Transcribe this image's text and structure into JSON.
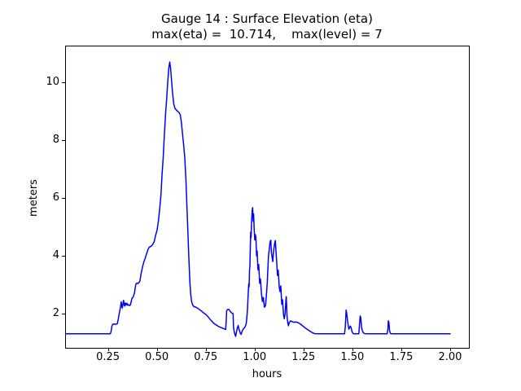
{
  "figure": {
    "title_line1": "Gauge 14 : Surface Elevation (eta)",
    "title_line2": "max(eta) =  10.714,    max(level) = 7"
  },
  "chart_data": {
    "type": "line",
    "title": "Gauge 14 : Surface Elevation (eta)",
    "subtitle": "max(eta) =  10.714,    max(level) = 7",
    "xlabel": "hours",
    "ylabel": "meters",
    "max_eta": 10.714,
    "max_level": 7,
    "xlim": [
      0.031,
      2.096
    ],
    "ylim": [
      0.815,
      11.28
    ],
    "xticks": [
      0.25,
      0.5,
      0.75,
      1.0,
      1.25,
      1.5,
      1.75,
      2.0
    ],
    "xtick_labels": [
      "0.25",
      "0.50",
      "0.75",
      "1.00",
      "1.25",
      "1.50",
      "1.75",
      "2.00"
    ],
    "yticks": [
      2,
      4,
      6,
      8,
      10
    ],
    "ytick_labels": [
      "2",
      "4",
      "6",
      "8",
      "10"
    ],
    "grid": false,
    "legend": null,
    "line_color": "#0000ff",
    "background_color": "#ffffff",
    "series": [
      {
        "name": "eta",
        "points": [
          [
            0.033,
            1.3
          ],
          [
            0.1,
            1.3
          ],
          [
            0.18,
            1.3
          ],
          [
            0.262,
            1.3
          ],
          [
            0.266,
            1.38
          ],
          [
            0.27,
            1.55
          ],
          [
            0.274,
            1.63
          ],
          [
            0.28,
            1.64
          ],
          [
            0.287,
            1.63
          ],
          [
            0.293,
            1.64
          ],
          [
            0.298,
            1.65
          ],
          [
            0.304,
            1.85
          ],
          [
            0.309,
            2.05
          ],
          [
            0.313,
            2.18
          ],
          [
            0.316,
            2.32
          ],
          [
            0.318,
            2.41
          ],
          [
            0.32,
            2.28
          ],
          [
            0.323,
            2.19
          ],
          [
            0.327,
            2.35
          ],
          [
            0.33,
            2.46
          ],
          [
            0.333,
            2.3
          ],
          [
            0.336,
            2.26
          ],
          [
            0.339,
            2.37
          ],
          [
            0.343,
            2.3
          ],
          [
            0.347,
            2.36
          ],
          [
            0.351,
            2.29
          ],
          [
            0.356,
            2.31
          ],
          [
            0.36,
            2.28
          ],
          [
            0.365,
            2.3
          ],
          [
            0.37,
            2.45
          ],
          [
            0.374,
            2.55
          ],
          [
            0.379,
            2.57
          ],
          [
            0.383,
            2.66
          ],
          [
            0.386,
            2.72
          ],
          [
            0.39,
            2.92
          ],
          [
            0.393,
            3.02
          ],
          [
            0.398,
            3.06
          ],
          [
            0.403,
            3.04
          ],
          [
            0.408,
            3.07
          ],
          [
            0.413,
            3.11
          ],
          [
            0.42,
            3.4
          ],
          [
            0.427,
            3.62
          ],
          [
            0.434,
            3.8
          ],
          [
            0.441,
            3.93
          ],
          [
            0.448,
            4.08
          ],
          [
            0.455,
            4.22
          ],
          [
            0.461,
            4.3
          ],
          [
            0.468,
            4.32
          ],
          [
            0.475,
            4.36
          ],
          [
            0.481,
            4.42
          ],
          [
            0.487,
            4.5
          ],
          [
            0.494,
            4.72
          ],
          [
            0.501,
            4.88
          ],
          [
            0.508,
            5.2
          ],
          [
            0.515,
            5.65
          ],
          [
            0.521,
            6.1
          ],
          [
            0.527,
            6.85
          ],
          [
            0.533,
            7.45
          ],
          [
            0.539,
            8.25
          ],
          [
            0.545,
            8.95
          ],
          [
            0.551,
            9.5
          ],
          [
            0.556,
            10.05
          ],
          [
            0.561,
            10.48
          ],
          [
            0.566,
            10.714
          ],
          [
            0.57,
            10.52
          ],
          [
            0.575,
            10.1
          ],
          [
            0.581,
            9.6
          ],
          [
            0.587,
            9.25
          ],
          [
            0.593,
            9.1
          ],
          [
            0.6,
            9.05
          ],
          [
            0.607,
            9.0
          ],
          [
            0.613,
            8.97
          ],
          [
            0.62,
            8.88
          ],
          [
            0.626,
            8.6
          ],
          [
            0.631,
            8.25
          ],
          [
            0.637,
            7.85
          ],
          [
            0.643,
            7.4
          ],
          [
            0.649,
            6.6
          ],
          [
            0.654,
            5.7
          ],
          [
            0.659,
            4.8
          ],
          [
            0.664,
            3.9
          ],
          [
            0.669,
            3.1
          ],
          [
            0.673,
            2.7
          ],
          [
            0.677,
            2.45
          ],
          [
            0.683,
            2.3
          ],
          [
            0.69,
            2.24
          ],
          [
            0.697,
            2.23
          ],
          [
            0.705,
            2.2
          ],
          [
            0.712,
            2.17
          ],
          [
            0.718,
            2.14
          ],
          [
            0.726,
            2.1
          ],
          [
            0.733,
            2.06
          ],
          [
            0.74,
            2.02
          ],
          [
            0.747,
            1.99
          ],
          [
            0.754,
            1.95
          ],
          [
            0.761,
            1.9
          ],
          [
            0.768,
            1.84
          ],
          [
            0.775,
            1.78
          ],
          [
            0.782,
            1.73
          ],
          [
            0.789,
            1.68
          ],
          [
            0.796,
            1.64
          ],
          [
            0.803,
            1.61
          ],
          [
            0.81,
            1.58
          ],
          [
            0.817,
            1.55
          ],
          [
            0.824,
            1.53
          ],
          [
            0.831,
            1.51
          ],
          [
            0.838,
            1.49
          ],
          [
            0.845,
            1.47
          ],
          [
            0.852,
            1.45
          ],
          [
            0.855,
            1.75
          ],
          [
            0.857,
            2.1
          ],
          [
            0.862,
            2.14
          ],
          [
            0.868,
            2.15
          ],
          [
            0.874,
            2.09
          ],
          [
            0.88,
            2.04
          ],
          [
            0.886,
            2.01
          ],
          [
            0.89,
            2.0
          ],
          [
            0.892,
            1.55
          ],
          [
            0.895,
            1.4
          ],
          [
            0.899,
            1.29
          ],
          [
            0.903,
            1.21
          ],
          [
            0.907,
            1.35
          ],
          [
            0.911,
            1.48
          ],
          [
            0.916,
            1.59
          ],
          [
            0.921,
            1.44
          ],
          [
            0.926,
            1.34
          ],
          [
            0.931,
            1.28
          ],
          [
            0.936,
            1.38
          ],
          [
            0.941,
            1.46
          ],
          [
            0.947,
            1.5
          ],
          [
            0.952,
            1.55
          ],
          [
            0.957,
            1.65
          ],
          [
            0.961,
            1.9
          ],
          [
            0.964,
            2.2
          ],
          [
            0.966,
            2.5
          ],
          [
            0.968,
            2.78
          ],
          [
            0.97,
            3.03
          ],
          [
            0.972,
            2.92
          ],
          [
            0.974,
            3.5
          ],
          [
            0.976,
            3.65
          ],
          [
            0.978,
            4.25
          ],
          [
            0.98,
            4.82
          ],
          [
            0.982,
            4.63
          ],
          [
            0.984,
            5.1
          ],
          [
            0.986,
            5.35
          ],
          [
            0.988,
            5.6
          ],
          [
            0.99,
            5.67
          ],
          [
            0.993,
            5.2
          ],
          [
            0.995,
            5.45
          ],
          [
            0.998,
            4.9
          ],
          [
            1.001,
            4.55
          ],
          [
            1.004,
            4.74
          ],
          [
            1.007,
            4.6
          ],
          [
            1.01,
            4.0
          ],
          [
            1.013,
            4.17
          ],
          [
            1.017,
            3.52
          ],
          [
            1.021,
            3.7
          ],
          [
            1.026,
            3.05
          ],
          [
            1.03,
            3.2
          ],
          [
            1.035,
            2.7
          ],
          [
            1.04,
            2.42
          ],
          [
            1.045,
            2.56
          ],
          [
            1.05,
            2.22
          ],
          [
            1.056,
            2.28
          ],
          [
            1.061,
            2.7
          ],
          [
            1.065,
            3.1
          ],
          [
            1.068,
            3.55
          ],
          [
            1.071,
            4.0
          ],
          [
            1.074,
            4.17
          ],
          [
            1.077,
            4.36
          ],
          [
            1.08,
            4.51
          ],
          [
            1.083,
            4.54
          ],
          [
            1.086,
            4.12
          ],
          [
            1.089,
            3.97
          ],
          [
            1.093,
            3.8
          ],
          [
            1.096,
            4.1
          ],
          [
            1.1,
            4.32
          ],
          [
            1.103,
            4.45
          ],
          [
            1.106,
            4.53
          ],
          [
            1.11,
            4.1
          ],
          [
            1.113,
            3.79
          ],
          [
            1.117,
            3.32
          ],
          [
            1.121,
            3.5
          ],
          [
            1.126,
            2.92
          ],
          [
            1.13,
            2.76
          ],
          [
            1.134,
            2.96
          ],
          [
            1.139,
            2.32
          ],
          [
            1.143,
            2.48
          ],
          [
            1.148,
            1.96
          ],
          [
            1.152,
            1.82
          ],
          [
            1.156,
            2.0
          ],
          [
            1.16,
            2.45
          ],
          [
            1.162,
            2.59
          ],
          [
            1.166,
            1.9
          ],
          [
            1.169,
            1.72
          ],
          [
            1.173,
            1.58
          ],
          [
            1.178,
            1.7
          ],
          [
            1.184,
            1.75
          ],
          [
            1.192,
            1.72
          ],
          [
            1.201,
            1.7
          ],
          [
            1.211,
            1.71
          ],
          [
            1.222,
            1.69
          ],
          [
            1.234,
            1.64
          ],
          [
            1.247,
            1.57
          ],
          [
            1.26,
            1.5
          ],
          [
            1.275,
            1.43
          ],
          [
            1.29,
            1.36
          ],
          [
            1.305,
            1.31
          ],
          [
            1.318,
            1.3
          ],
          [
            1.4,
            1.3
          ],
          [
            1.46,
            1.3
          ],
          [
            1.464,
            1.55
          ],
          [
            1.468,
            2.12
          ],
          [
            1.471,
            2.02
          ],
          [
            1.475,
            1.78
          ],
          [
            1.478,
            1.63
          ],
          [
            1.482,
            1.46
          ],
          [
            1.486,
            1.52
          ],
          [
            1.49,
            1.57
          ],
          [
            1.494,
            1.5
          ],
          [
            1.498,
            1.38
          ],
          [
            1.503,
            1.32
          ],
          [
            1.508,
            1.3
          ],
          [
            1.533,
            1.3
          ],
          [
            1.537,
            1.65
          ],
          [
            1.54,
            1.92
          ],
          [
            1.543,
            1.86
          ],
          [
            1.547,
            1.52
          ],
          [
            1.551,
            1.41
          ],
          [
            1.556,
            1.34
          ],
          [
            1.562,
            1.31
          ],
          [
            1.568,
            1.3
          ],
          [
            1.678,
            1.3
          ],
          [
            1.682,
            1.48
          ],
          [
            1.684,
            1.75
          ],
          [
            1.687,
            1.7
          ],
          [
            1.69,
            1.42
          ],
          [
            1.694,
            1.32
          ],
          [
            1.699,
            1.3
          ],
          [
            1.8,
            1.3
          ],
          [
            1.9,
            1.3
          ],
          [
            2.0,
            1.3
          ]
        ]
      }
    ]
  }
}
